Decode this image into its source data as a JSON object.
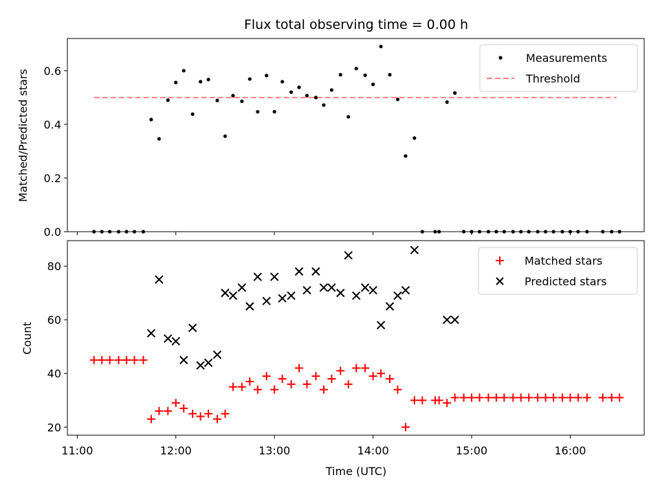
{
  "figure": {
    "title": "Flux total observing time = 0.00 h",
    "xlabel": "Time (UTC)"
  },
  "chart_data": [
    {
      "type": "scatter",
      "ylabel": "Matched/Predicted stars",
      "ylim": [
        0,
        0.72
      ],
      "yticks": [
        0.0,
        0.2,
        0.4,
        0.6
      ],
      "ytick_labels": [
        "0.0",
        "0.2",
        "0.4",
        "0.6"
      ],
      "xlim_hours": [
        10.9,
        16.75
      ],
      "legend_position": "upper-right",
      "threshold": {
        "name": "Threshold",
        "value": 0.5,
        "x_range_hours": [
          11.17,
          16.47
        ],
        "color": "#ff7f7f"
      },
      "series": [
        {
          "name": "Measurements",
          "color": "#000000",
          "marker": "dot",
          "points": [
            [
              11.17,
              0.0
            ],
            [
              11.25,
              0.0
            ],
            [
              11.33,
              0.0
            ],
            [
              11.42,
              0.0
            ],
            [
              11.5,
              0.0
            ],
            [
              11.58,
              0.0
            ],
            [
              11.67,
              0.0
            ],
            [
              11.75,
              0.418
            ],
            [
              11.83,
              0.346
            ],
            [
              11.92,
              0.49
            ],
            [
              12.0,
              0.556
            ],
            [
              12.08,
              0.6
            ],
            [
              12.17,
              0.438
            ],
            [
              12.25,
              0.559
            ],
            [
              12.33,
              0.567
            ],
            [
              12.42,
              0.489
            ],
            [
              12.5,
              0.356
            ],
            [
              12.58,
              0.507
            ],
            [
              12.67,
              0.486
            ],
            [
              12.75,
              0.569
            ],
            [
              12.83,
              0.447
            ],
            [
              12.92,
              0.582
            ],
            [
              13.0,
              0.447
            ],
            [
              13.08,
              0.559
            ],
            [
              13.17,
              0.52
            ],
            [
              13.25,
              0.538
            ],
            [
              13.33,
              0.507
            ],
            [
              13.42,
              0.5
            ],
            [
              13.5,
              0.472
            ],
            [
              13.58,
              0.528
            ],
            [
              13.67,
              0.585
            ],
            [
              13.75,
              0.428
            ],
            [
              13.83,
              0.608
            ],
            [
              13.92,
              0.583
            ],
            [
              14.0,
              0.549
            ],
            [
              14.08,
              0.69
            ],
            [
              14.17,
              0.585
            ],
            [
              14.25,
              0.493
            ],
            [
              14.33,
              0.282
            ],
            [
              14.42,
              0.349
            ],
            [
              14.5,
              0.0
            ],
            [
              14.63,
              0.0
            ],
            [
              14.67,
              0.0
            ],
            [
              14.75,
              0.483
            ],
            [
              14.83,
              0.517
            ],
            [
              14.92,
              0.0
            ],
            [
              15.0,
              0.0
            ],
            [
              15.08,
              0.0
            ],
            [
              15.17,
              0.0
            ],
            [
              15.25,
              0.0
            ],
            [
              15.33,
              0.0
            ],
            [
              15.42,
              0.0
            ],
            [
              15.5,
              0.0
            ],
            [
              15.58,
              0.0
            ],
            [
              15.67,
              0.0
            ],
            [
              15.75,
              0.0
            ],
            [
              15.83,
              0.0
            ],
            [
              15.92,
              0.0
            ],
            [
              16.0,
              0.0
            ],
            [
              16.08,
              0.0
            ],
            [
              16.17,
              0.0
            ],
            [
              16.33,
              0.0
            ],
            [
              16.42,
              0.0
            ],
            [
              16.5,
              0.0
            ]
          ]
        }
      ]
    },
    {
      "type": "scatter",
      "ylabel": "Count",
      "ylim": [
        17,
        89.5
      ],
      "yticks": [
        20,
        40,
        60,
        80
      ],
      "ytick_labels": [
        "20",
        "40",
        "60",
        "80"
      ],
      "xlim_hours": [
        10.9,
        16.75
      ],
      "xticks_hours": [
        11,
        12,
        13,
        14,
        15,
        16
      ],
      "xtick_labels": [
        "11:00",
        "12:00",
        "13:00",
        "14:00",
        "15:00",
        "16:00"
      ],
      "legend_position": "upper-right",
      "series": [
        {
          "name": "Matched stars",
          "color": "#ff0000",
          "marker": "plus",
          "points": [
            [
              11.17,
              45
            ],
            [
              11.25,
              45
            ],
            [
              11.33,
              45
            ],
            [
              11.42,
              45
            ],
            [
              11.5,
              45
            ],
            [
              11.58,
              45
            ],
            [
              11.67,
              45
            ],
            [
              11.75,
              23
            ],
            [
              11.83,
              26
            ],
            [
              11.92,
              26
            ],
            [
              12.0,
              29
            ],
            [
              12.08,
              27
            ],
            [
              12.17,
              25
            ],
            [
              12.25,
              24
            ],
            [
              12.33,
              25
            ],
            [
              12.42,
              23
            ],
            [
              12.5,
              25
            ],
            [
              12.58,
              35
            ],
            [
              12.67,
              35
            ],
            [
              12.75,
              37
            ],
            [
              12.83,
              34
            ],
            [
              12.92,
              39
            ],
            [
              13.0,
              34
            ],
            [
              13.08,
              38
            ],
            [
              13.17,
              36
            ],
            [
              13.25,
              42
            ],
            [
              13.33,
              36
            ],
            [
              13.42,
              39
            ],
            [
              13.5,
              34
            ],
            [
              13.58,
              38
            ],
            [
              13.67,
              41
            ],
            [
              13.75,
              36
            ],
            [
              13.83,
              42
            ],
            [
              13.92,
              42
            ],
            [
              14.0,
              39
            ],
            [
              14.08,
              40
            ],
            [
              14.17,
              38
            ],
            [
              14.25,
              34
            ],
            [
              14.33,
              20
            ],
            [
              14.42,
              30
            ],
            [
              14.5,
              30
            ],
            [
              14.63,
              30
            ],
            [
              14.67,
              30
            ],
            [
              14.75,
              29
            ],
            [
              14.83,
              31
            ],
            [
              14.92,
              31
            ],
            [
              15.0,
              31
            ],
            [
              15.08,
              31
            ],
            [
              15.17,
              31
            ],
            [
              15.25,
              31
            ],
            [
              15.33,
              31
            ],
            [
              15.42,
              31
            ],
            [
              15.5,
              31
            ],
            [
              15.58,
              31
            ],
            [
              15.67,
              31
            ],
            [
              15.75,
              31
            ],
            [
              15.83,
              31
            ],
            [
              15.92,
              31
            ],
            [
              16.0,
              31
            ],
            [
              16.08,
              31
            ],
            [
              16.17,
              31
            ],
            [
              16.33,
              31
            ],
            [
              16.42,
              31
            ],
            [
              16.5,
              31
            ]
          ]
        },
        {
          "name": "Predicted stars",
          "color": "#000000",
          "marker": "x",
          "points": [
            [
              11.75,
              55
            ],
            [
              11.83,
              75
            ],
            [
              11.92,
              53
            ],
            [
              12.0,
              52
            ],
            [
              12.08,
              45
            ],
            [
              12.17,
              57
            ],
            [
              12.25,
              43
            ],
            [
              12.33,
              44
            ],
            [
              12.42,
              47
            ],
            [
              12.5,
              70
            ],
            [
              12.58,
              69
            ],
            [
              12.67,
              72
            ],
            [
              12.75,
              65
            ],
            [
              12.83,
              76
            ],
            [
              12.92,
              67
            ],
            [
              13.0,
              76
            ],
            [
              13.08,
              68
            ],
            [
              13.17,
              69
            ],
            [
              13.25,
              78
            ],
            [
              13.33,
              71
            ],
            [
              13.42,
              78
            ],
            [
              13.5,
              72
            ],
            [
              13.58,
              72
            ],
            [
              13.67,
              70
            ],
            [
              13.75,
              84
            ],
            [
              13.83,
              69
            ],
            [
              13.92,
              72
            ],
            [
              14.0,
              71
            ],
            [
              14.08,
              58
            ],
            [
              14.17,
              65
            ],
            [
              14.25,
              69
            ],
            [
              14.33,
              71
            ],
            [
              14.42,
              86
            ],
            [
              14.75,
              60
            ],
            [
              14.83,
              60
            ]
          ]
        }
      ]
    }
  ]
}
